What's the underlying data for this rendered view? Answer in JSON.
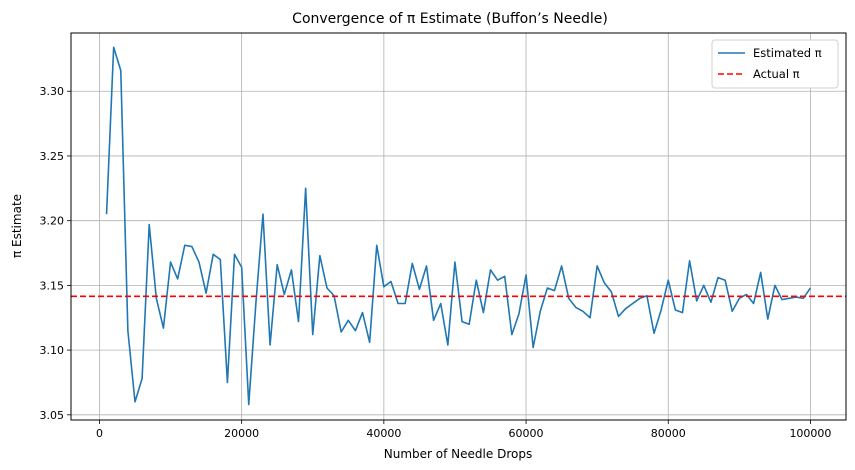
{
  "chart_data": {
    "type": "line",
    "title": "Convergence of π Estimate (Buffon’s Needle)",
    "xlabel": "Number of Needle Drops",
    "ylabel": "π Estimate",
    "xlim": [
      -4000,
      105000
    ],
    "ylim": [
      3.046,
      3.345
    ],
    "grid": true,
    "legend_position": "top-right",
    "x_ticks": [
      0,
      20000,
      40000,
      60000,
      80000,
      100000
    ],
    "x_tick_labels": [
      "0",
      "20000",
      "40000",
      "60000",
      "80000",
      "100000"
    ],
    "y_ticks": [
      3.05,
      3.1,
      3.15,
      3.2,
      3.25,
      3.3
    ],
    "y_tick_labels": [
      "3.05",
      "3.10",
      "3.15",
      "3.20",
      "3.25",
      "3.30"
    ],
    "series": [
      {
        "name": "Estimated π",
        "color": "#1f77b4",
        "style": "solid",
        "x": [
          1000,
          2000,
          3000,
          4000,
          5000,
          6000,
          7000,
          8000,
          9000,
          10000,
          11000,
          12000,
          13000,
          14000,
          15000,
          16000,
          17000,
          18000,
          19000,
          20000,
          21000,
          22000,
          23000,
          24000,
          25000,
          26000,
          27000,
          28000,
          29000,
          30000,
          31000,
          32000,
          33000,
          34000,
          35000,
          36000,
          37000,
          38000,
          39000,
          40000,
          41000,
          42000,
          43000,
          44000,
          45000,
          46000,
          47000,
          48000,
          49000,
          50000,
          51000,
          52000,
          53000,
          54000,
          55000,
          56000,
          57000,
          58000,
          59000,
          60000,
          61000,
          62000,
          63000,
          64000,
          65000,
          66000,
          67000,
          68000,
          69000,
          70000,
          71000,
          72000,
          73000,
          74000,
          75000,
          76000,
          77000,
          78000,
          79000,
          80000,
          81000,
          82000,
          83000,
          84000,
          85000,
          86000,
          87000,
          88000,
          89000,
          90000,
          91000,
          92000,
          93000,
          94000,
          95000,
          96000,
          97000,
          98000,
          99000,
          100000
        ],
        "y": [
          3.205,
          3.334,
          3.316,
          3.115,
          3.06,
          3.078,
          3.197,
          3.14,
          3.117,
          3.168,
          3.155,
          3.181,
          3.18,
          3.168,
          3.144,
          3.174,
          3.17,
          3.075,
          3.174,
          3.164,
          3.058,
          3.136,
          3.205,
          3.104,
          3.166,
          3.143,
          3.162,
          3.122,
          3.225,
          3.112,
          3.173,
          3.148,
          3.142,
          3.114,
          3.123,
          3.115,
          3.129,
          3.106,
          3.181,
          3.149,
          3.153,
          3.136,
          3.136,
          3.167,
          3.147,
          3.165,
          3.123,
          3.136,
          3.104,
          3.168,
          3.122,
          3.12,
          3.154,
          3.129,
          3.162,
          3.154,
          3.157,
          3.112,
          3.128,
          3.158,
          3.102,
          3.13,
          3.148,
          3.146,
          3.165,
          3.14,
          3.133,
          3.13,
          3.125,
          3.165,
          3.152,
          3.145,
          3.126,
          3.132,
          3.136,
          3.14,
          3.142,
          3.113,
          3.131,
          3.154,
          3.131,
          3.129,
          3.169,
          3.138,
          3.15,
          3.137,
          3.156,
          3.154,
          3.13,
          3.14,
          3.143,
          3.136,
          3.16,
          3.124,
          3.15,
          3.139,
          3.14,
          3.141,
          3.14,
          3.148
        ]
      },
      {
        "name": "Actual π",
        "color": "#ff0000",
        "style": "dashed",
        "value": 3.14159
      }
    ]
  }
}
